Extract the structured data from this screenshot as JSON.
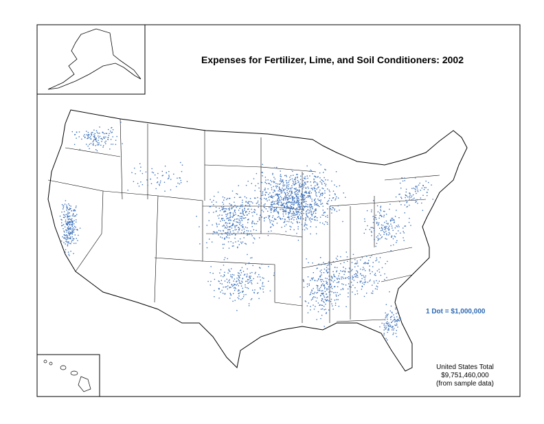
{
  "title": "Expenses for Fertilizer, Lime, and Soil Conditioners:  2002",
  "legend": {
    "dot": "1 Dot = $1,000,000"
  },
  "total": {
    "label": "United States Total",
    "amount": "$9,751,460,000",
    "note": "(from sample data)"
  }
}
